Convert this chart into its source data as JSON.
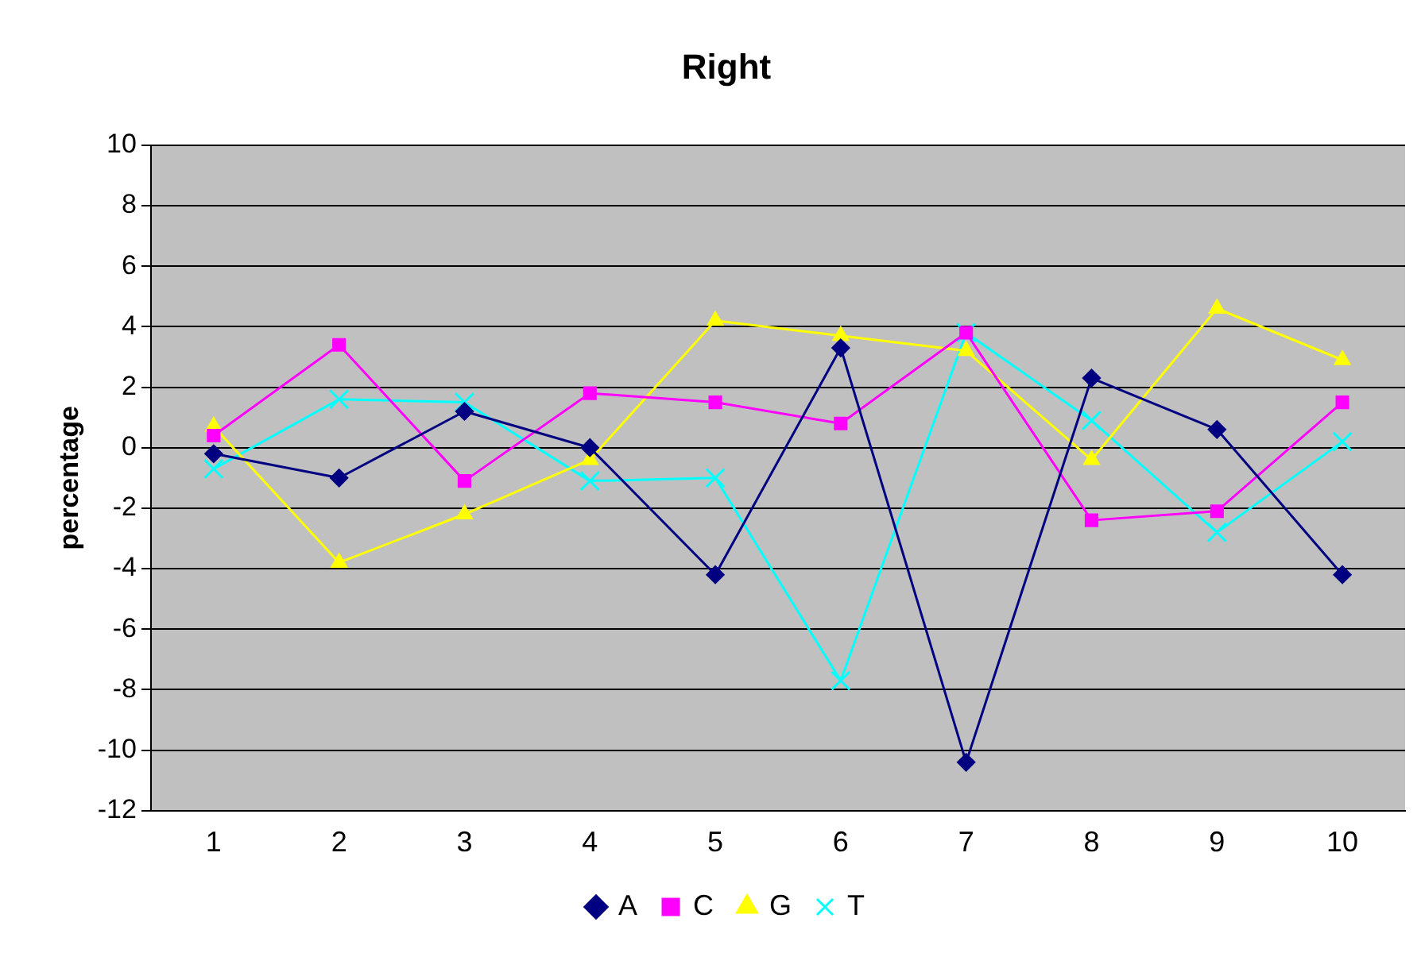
{
  "chart_data": {
    "type": "line",
    "title": "Right",
    "ylabel": "percentage",
    "categories": [
      "1",
      "2",
      "3",
      "4",
      "5",
      "6",
      "7",
      "8",
      "9",
      "10"
    ],
    "series": [
      {
        "name": "A",
        "color": "#000080",
        "marker": "diamond",
        "values": [
          -0.2,
          -1.0,
          1.2,
          0,
          -4.2,
          3.3,
          -10.4,
          2.3,
          0.6,
          -4.2
        ]
      },
      {
        "name": "C",
        "color": "#ff00ff",
        "marker": "square",
        "values": [
          0.4,
          3.4,
          -1.1,
          1.8,
          1.5,
          0.8,
          3.8,
          -2.4,
          -2.1,
          1.5
        ]
      },
      {
        "name": "G",
        "color": "#ffff00",
        "marker": "triangle",
        "values": [
          0.7,
          -3.8,
          -2.2,
          -0.4,
          4.2,
          3.7,
          3.2,
          -0.4,
          4.6,
          2.9
        ]
      },
      {
        "name": "T",
        "color": "#00ffff",
        "marker": "cross",
        "values": [
          -0.7,
          1.6,
          1.5,
          -1.1,
          -1.0,
          -7.7,
          3.8,
          0.9,
          -2.8,
          0.2
        ]
      }
    ],
    "ylim": [
      -12,
      10
    ],
    "yticks": [
      -12,
      -10,
      -8,
      -6,
      -4,
      -2,
      0,
      2,
      4,
      6,
      8,
      10
    ],
    "grid": "y",
    "legend": "bottom"
  }
}
